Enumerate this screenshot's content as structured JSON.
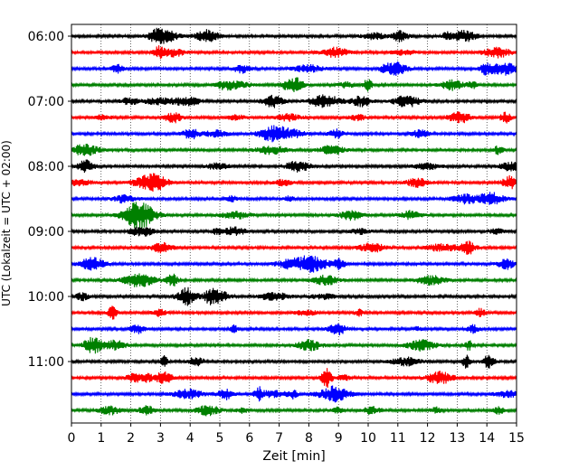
{
  "chart_data": {
    "type": "line",
    "title": "",
    "xlabel": "Zeit  [min]",
    "ylabel": "UTC (Lokalzeit = UTC + 02:00)",
    "xlim": [
      0,
      15
    ],
    "x_ticks": [
      "0",
      "1",
      "2",
      "3",
      "4",
      "5",
      "6",
      "7",
      "8",
      "9",
      "10",
      "11",
      "12",
      "13",
      "14",
      "15"
    ],
    "y_tick_labels": [
      "06:00",
      "07:00",
      "08:00",
      "09:00",
      "10:00",
      "11:00"
    ],
    "trace_interval_min": 15,
    "trace_start": "06:00",
    "trace_count": 24,
    "trace_colors": [
      "#000000",
      "#ff0000",
      "#0000ff",
      "#008000"
    ],
    "grid": "vertical dotted",
    "legend": "none"
  }
}
